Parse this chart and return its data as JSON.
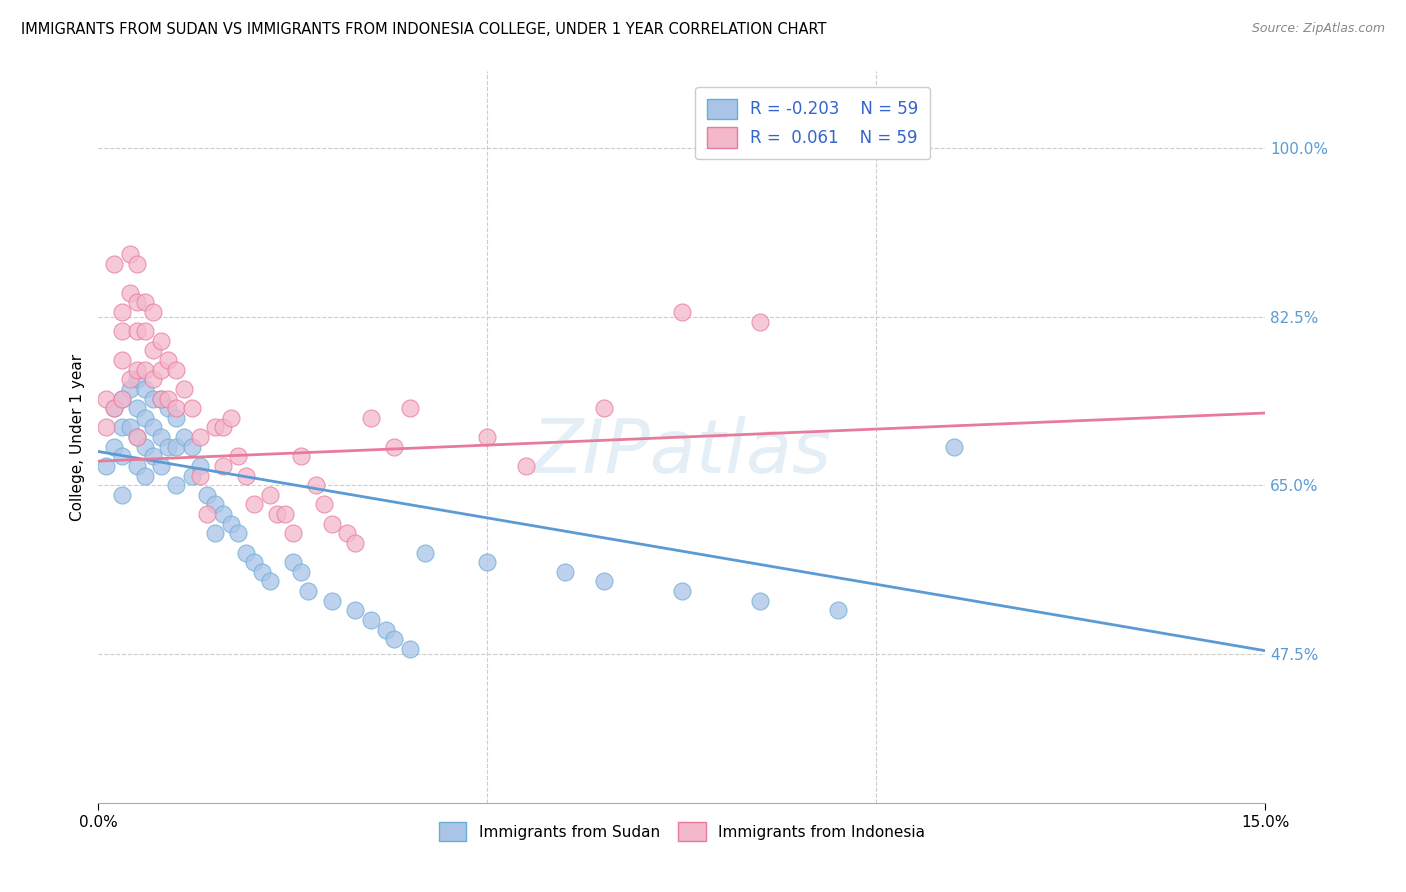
{
  "title": "IMMIGRANTS FROM SUDAN VS IMMIGRANTS FROM INDONESIA COLLEGE, UNDER 1 YEAR CORRELATION CHART",
  "source": "Source: ZipAtlas.com",
  "ylabel": "College, Under 1 year",
  "ylabel_ticks": [
    "47.5%",
    "65.0%",
    "82.5%",
    "100.0%"
  ],
  "xlim": [
    0.0,
    0.15
  ],
  "ylim": [
    0.32,
    1.08
  ],
  "ytick_vals": [
    0.475,
    0.65,
    0.825,
    1.0
  ],
  "grid_color": "#cccccc",
  "sudan_color": "#aac4e8",
  "indonesia_color": "#f4b8cb",
  "sudan_edge_color": "#6aaed6",
  "indonesia_edge_color": "#e87a9a",
  "sudan_line_color": "#5b9bd5",
  "indonesia_line_color": "#e87a9a",
  "sudan_r": -0.203,
  "indonesia_r": 0.061,
  "n": 59,
  "watermark": "ZIPatlas",
  "sudan_line_x0": 0.0,
  "sudan_line_x1": 0.15,
  "sudan_line_y0": 0.685,
  "sudan_line_y1": 0.478,
  "indonesia_line_x0": 0.0,
  "indonesia_line_x1": 0.15,
  "indonesia_line_y0": 0.675,
  "indonesia_line_y1": 0.725,
  "sudan_x": [
    0.001,
    0.002,
    0.002,
    0.003,
    0.003,
    0.003,
    0.003,
    0.004,
    0.004,
    0.005,
    0.005,
    0.005,
    0.005,
    0.006,
    0.006,
    0.006,
    0.006,
    0.007,
    0.007,
    0.007,
    0.008,
    0.008,
    0.008,
    0.009,
    0.009,
    0.01,
    0.01,
    0.01,
    0.011,
    0.012,
    0.012,
    0.013,
    0.014,
    0.015,
    0.015,
    0.016,
    0.017,
    0.018,
    0.019,
    0.02,
    0.021,
    0.022,
    0.025,
    0.026,
    0.027,
    0.03,
    0.033,
    0.035,
    0.037,
    0.038,
    0.04,
    0.042,
    0.05,
    0.06,
    0.065,
    0.075,
    0.085,
    0.095,
    0.11
  ],
  "sudan_y": [
    0.67,
    0.73,
    0.69,
    0.74,
    0.71,
    0.68,
    0.64,
    0.75,
    0.71,
    0.76,
    0.73,
    0.7,
    0.67,
    0.75,
    0.72,
    0.69,
    0.66,
    0.74,
    0.71,
    0.68,
    0.74,
    0.7,
    0.67,
    0.73,
    0.69,
    0.72,
    0.69,
    0.65,
    0.7,
    0.69,
    0.66,
    0.67,
    0.64,
    0.63,
    0.6,
    0.62,
    0.61,
    0.6,
    0.58,
    0.57,
    0.56,
    0.55,
    0.57,
    0.56,
    0.54,
    0.53,
    0.52,
    0.51,
    0.5,
    0.49,
    0.48,
    0.58,
    0.57,
    0.56,
    0.55,
    0.54,
    0.53,
    0.52,
    0.69
  ],
  "indonesia_x": [
    0.001,
    0.001,
    0.002,
    0.002,
    0.003,
    0.003,
    0.003,
    0.003,
    0.004,
    0.004,
    0.004,
    0.005,
    0.005,
    0.005,
    0.005,
    0.005,
    0.006,
    0.006,
    0.006,
    0.007,
    0.007,
    0.007,
    0.008,
    0.008,
    0.008,
    0.009,
    0.009,
    0.01,
    0.01,
    0.011,
    0.012,
    0.013,
    0.013,
    0.014,
    0.015,
    0.016,
    0.016,
    0.017,
    0.018,
    0.019,
    0.02,
    0.022,
    0.023,
    0.024,
    0.025,
    0.026,
    0.028,
    0.029,
    0.03,
    0.032,
    0.033,
    0.035,
    0.038,
    0.04,
    0.05,
    0.055,
    0.065,
    0.075,
    0.085
  ],
  "indonesia_y": [
    0.74,
    0.71,
    0.88,
    0.73,
    0.83,
    0.81,
    0.78,
    0.74,
    0.89,
    0.85,
    0.76,
    0.88,
    0.84,
    0.81,
    0.77,
    0.7,
    0.84,
    0.81,
    0.77,
    0.83,
    0.79,
    0.76,
    0.8,
    0.77,
    0.74,
    0.78,
    0.74,
    0.77,
    0.73,
    0.75,
    0.73,
    0.7,
    0.66,
    0.62,
    0.71,
    0.71,
    0.67,
    0.72,
    0.68,
    0.66,
    0.63,
    0.64,
    0.62,
    0.62,
    0.6,
    0.68,
    0.65,
    0.63,
    0.61,
    0.6,
    0.59,
    0.72,
    0.69,
    0.73,
    0.7,
    0.67,
    0.73,
    0.83,
    0.82
  ]
}
